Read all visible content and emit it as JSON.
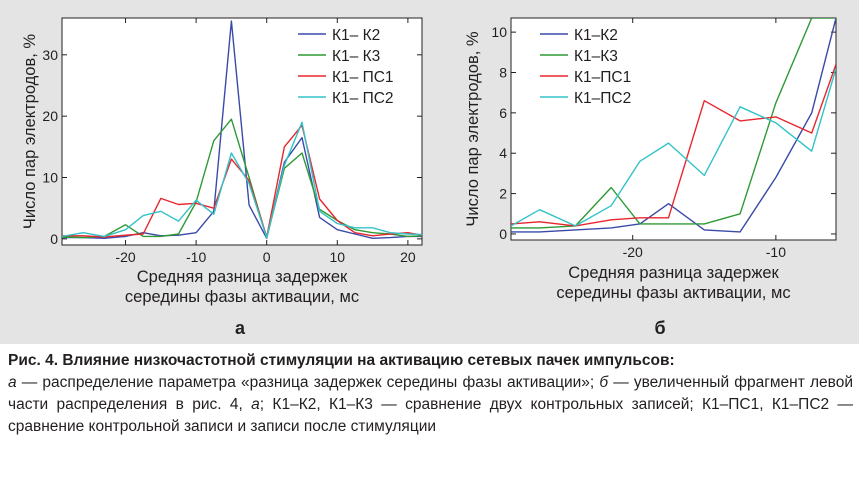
{
  "colors": {
    "k1k2": "#3a4aa8",
    "k1k3": "#2f9a36",
    "k1ps1": "#e8262e",
    "k1ps2": "#33c2c8",
    "panel_bg": "#e4e4e4",
    "axis": "#231f20"
  },
  "chart_data": [
    {
      "id": "a",
      "panel_label": "а",
      "type": "line",
      "xlabel": "Средняя разница задержек\nсередины фазы активации, мс",
      "ylabel": "Число пар электродов, %",
      "xlim": [
        -29,
        22
      ],
      "ylim": [
        -1,
        36
      ],
      "xticks": [
        -20,
        -10,
        0,
        10,
        20
      ],
      "xtick_labels": [
        "-20",
        "-10",
        "0",
        "10",
        "20"
      ],
      "yticks": [
        0,
        10,
        20,
        30
      ],
      "ytick_labels": [
        "0",
        "10",
        "20",
        "30"
      ],
      "legend_position": "top-right",
      "x": [
        -29,
        -26,
        -23,
        -20,
        -17.5,
        -15,
        -12.5,
        -10,
        -7.5,
        -5,
        -2.5,
        0,
        2.5,
        5,
        7.5,
        10,
        12.5,
        15,
        17.5,
        20,
        22
      ],
      "series": [
        {
          "name": "К1– К2",
          "color_key": "k1k2",
          "values": [
            0.2,
            0.2,
            0.1,
            0.4,
            1.0,
            0.5,
            0.6,
            1.0,
            4.5,
            35.5,
            5.5,
            0.1,
            12.5,
            16.5,
            3.5,
            1.5,
            0.8,
            0.1,
            0.2,
            0.4,
            0.4
          ]
        },
        {
          "name": "К1– К3",
          "color_key": "k1k3",
          "values": [
            0.3,
            0.2,
            0.4,
            2.3,
            0.4,
            0.4,
            0.8,
            6.0,
            16.0,
            19.5,
            10.0,
            0.2,
            11.5,
            14.0,
            4.8,
            3.0,
            1.5,
            1.0,
            0.8,
            0.4,
            0.5
          ]
        },
        {
          "name": "К1– ПС1",
          "color_key": "k1ps1",
          "values": [
            0.5,
            0.5,
            0.3,
            0.6,
            0.8,
            6.6,
            5.6,
            5.8,
            5.0,
            13.0,
            9.5,
            0.3,
            15.0,
            18.5,
            6.5,
            3.0,
            1.0,
            0.5,
            0.8,
            1.0,
            0.6
          ]
        },
        {
          "name": "К1– ПС2",
          "color_key": "k1ps2",
          "values": [
            0.4,
            1.0,
            0.4,
            1.5,
            3.8,
            4.5,
            2.9,
            6.3,
            4.0,
            14.0,
            9.0,
            0.2,
            12.0,
            19.0,
            4.5,
            2.5,
            1.8,
            1.8,
            1.0,
            0.8,
            0.7
          ]
        }
      ]
    },
    {
      "id": "b",
      "panel_label": "б",
      "type": "line",
      "xlabel": "Средняя разница задержек\nсередины фазы активации, мс",
      "ylabel": "Число пар электродов, %",
      "xlim": [
        -28.5,
        -5.8
      ],
      "ylim": [
        -0.3,
        10.7
      ],
      "xticks": [
        -20,
        -10
      ],
      "xtick_labels": [
        "-20",
        "-10"
      ],
      "yticks": [
        0,
        2,
        4,
        6,
        8,
        10
      ],
      "ytick_labels": [
        "0",
        "2",
        "4",
        "6",
        "8",
        "10"
      ],
      "legend_position": "top-left",
      "x": [
        -28.5,
        -26.5,
        -24.0,
        -21.5,
        -19.5,
        -17.5,
        -15.0,
        -12.5,
        -10.0,
        -7.5,
        -5.8
      ],
      "series": [
        {
          "name": "К1–К2",
          "color_key": "k1k2",
          "values": [
            0.1,
            0.1,
            0.2,
            0.3,
            0.5,
            1.5,
            0.2,
            0.1,
            2.8,
            6.0,
            10.7
          ]
        },
        {
          "name": "К1–К3",
          "color_key": "k1k3",
          "values": [
            0.3,
            0.3,
            0.4,
            2.3,
            0.5,
            0.5,
            0.5,
            1.0,
            6.5,
            10.7,
            10.7
          ]
        },
        {
          "name": "К1–ПС1",
          "color_key": "k1ps1",
          "values": [
            0.5,
            0.6,
            0.4,
            0.7,
            0.8,
            0.8,
            6.6,
            5.6,
            5.8,
            5.0,
            8.4
          ]
        },
        {
          "name": "К1–ПС2",
          "color_key": "k1ps2",
          "values": [
            0.4,
            1.2,
            0.4,
            1.4,
            3.6,
            4.5,
            2.9,
            6.3,
            5.5,
            4.1,
            8.2
          ]
        }
      ]
    }
  ],
  "caption": {
    "lead": "Рис. 4. Влияние низкочастотной стимуляции на активацию сетевых пачек импульсов:",
    "seg1_italic": "а",
    "seg1": " — распределение параметра «разница задержек середины фазы активации»; ",
    "seg2_italic": "б",
    "seg2": " — увеличенный фрагмент левой части распределения в рис. 4, ",
    "seg3_italic": "а",
    "seg3": "; К1–К2, К1–К3 — сравнение двух контрольных записей; К1–ПС1, К1–ПС2 — сравнение контрольной записи и записи после стимуляции"
  }
}
